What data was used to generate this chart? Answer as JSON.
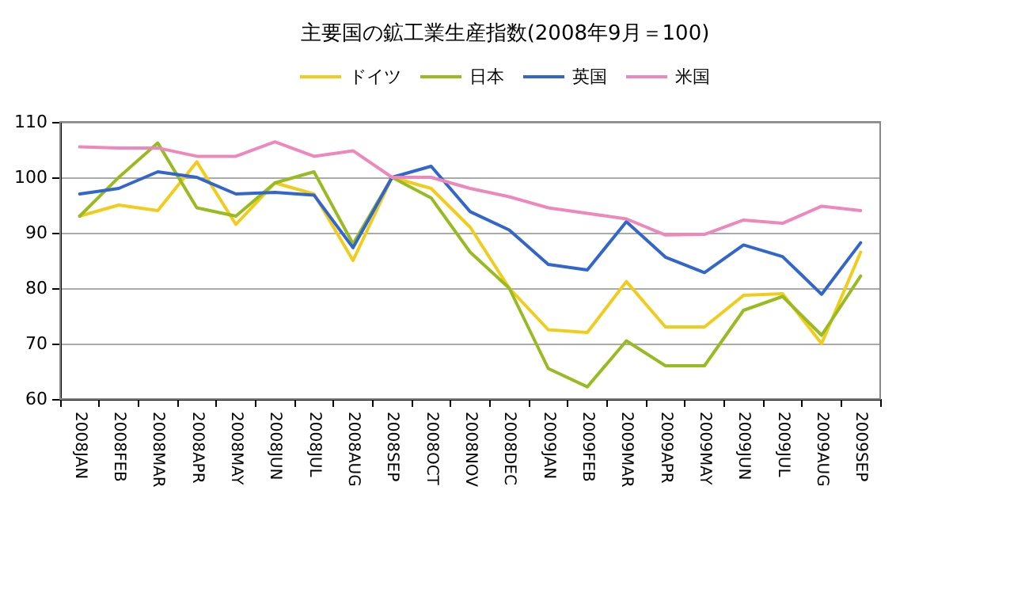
{
  "chart_data": {
    "type": "line",
    "title": "主要国の鉱工業生産指数(2008年9月＝100)",
    "categories": [
      "2008JAN",
      "2008FEB",
      "2008MAR",
      "2008APR",
      "2008MAY",
      "2008JUN",
      "2008JUL",
      "2008AUG",
      "2008SEP",
      "2008OCT",
      "2008NOV",
      "2008DEC",
      "2009JAN",
      "2009FEB",
      "2009MAR",
      "2009APR",
      "2009MAY",
      "2009JUN",
      "2009JUL",
      "2009AUG",
      "2009SEP"
    ],
    "series": [
      {
        "name": "ドイツ",
        "color": "#f2cc1a",
        "values": [
          93,
          95,
          94,
          102.8,
          91.5,
          99,
          97,
          85,
          100,
          98,
          91,
          80,
          72.5,
          72,
          81.2,
          73,
          73,
          78.7,
          79,
          70,
          86.5
        ]
      },
      {
        "name": "日本",
        "color": "#99bb22",
        "values": [
          93,
          100,
          106.2,
          94.5,
          93,
          99,
          101,
          88,
          100,
          96.3,
          86.5,
          80,
          65.5,
          62.2,
          70.5,
          66,
          66,
          76,
          78.5,
          71.5,
          82.2
        ]
      },
      {
        "name": "英国",
        "color": "#3366cc",
        "values": [
          97,
          98,
          101,
          100,
          97,
          97.3,
          96.8,
          87.3,
          100,
          102,
          93.8,
          90.5,
          84.3,
          83.3,
          92,
          85.6,
          82.8,
          87.8,
          85.7,
          78.9,
          88.2
        ]
      },
      {
        "name": "米国",
        "color": "#ee88bb",
        "values": [
          105.5,
          105.3,
          105.3,
          103.8,
          103.8,
          106.4,
          103.8,
          104.8,
          100,
          100,
          98,
          96.5,
          94.5,
          93.5,
          92.5,
          89.6,
          89.7,
          92.3,
          91.7,
          94.8,
          94
        ]
      }
    ],
    "ylim": [
      60,
      110
    ],
    "yticks": [
      60,
      70,
      80,
      90,
      100,
      110
    ],
    "grid": "y",
    "legend": "top",
    "marker": "none",
    "line_style": "solid"
  }
}
